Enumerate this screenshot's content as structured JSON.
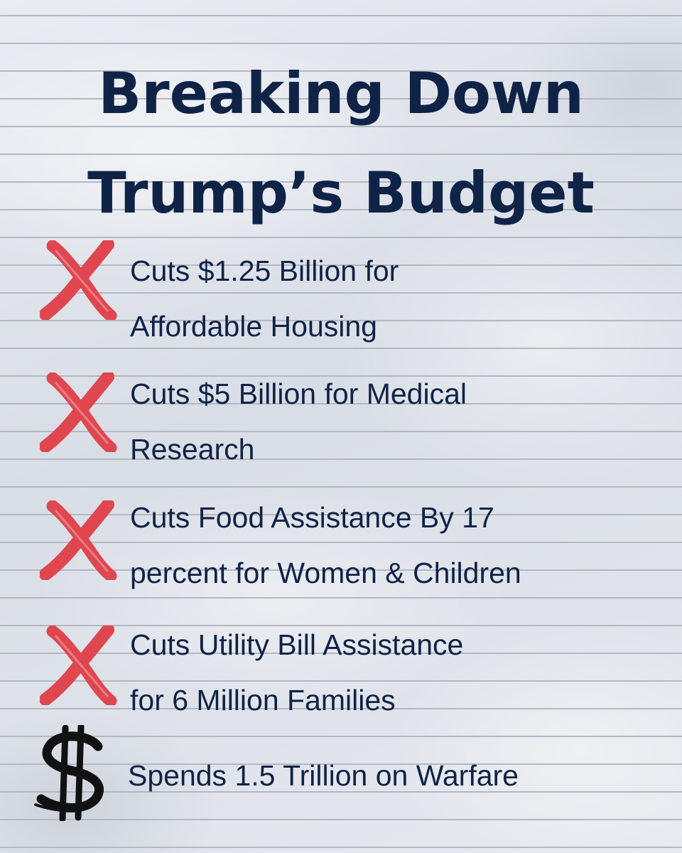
{
  "title": {
    "line1": "Breaking Down",
    "line2": "Trump’s Budget"
  },
  "items": [
    {
      "icon": "red-x-icon",
      "line1": "Cuts $1.25 Billion for",
      "line2": "Affordable Housing"
    },
    {
      "icon": "red-x-icon",
      "line1": "Cuts $5 Billion for Medical",
      "line2": "Research"
    },
    {
      "icon": "red-x-icon",
      "line1": "Cuts Food Assistance By 17",
      "line2": "percent for Women & Children"
    },
    {
      "icon": "red-x-icon",
      "line1": "Cuts Utility Bill Assistance",
      "line2": "for 6 Million Families"
    },
    {
      "icon": "dollar-sign-icon",
      "line1": "Spends 1.5 Trillion on Warfare"
    }
  ],
  "colors": {
    "text": "#0f2347",
    "cross": "#e0464f",
    "dollar": "#111111",
    "paper": "#dfe3ea",
    "rule_line": "#b3b8c2"
  }
}
